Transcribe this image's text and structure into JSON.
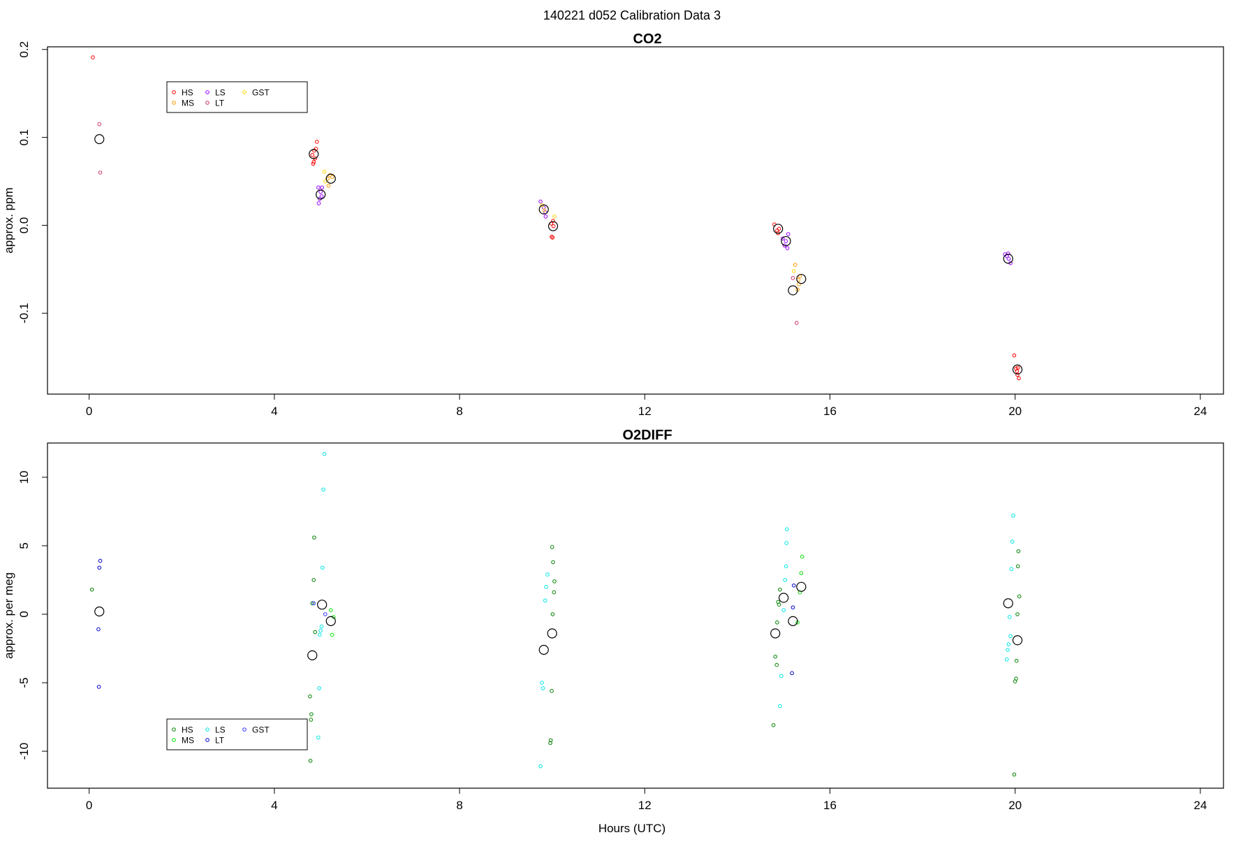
{
  "figure": {
    "title": "140221   d052   Calibration Data 3",
    "xlabel": "Hours (UTC)"
  },
  "chart_data": [
    {
      "type": "scatter",
      "title": "CO2",
      "xlabel": "",
      "ylabel": "approx. ppm",
      "xlim": [
        -0.9,
        24.5
      ],
      "ylim": [
        -0.192,
        0.203
      ],
      "x_ticks": [
        0,
        4,
        8,
        12,
        16,
        20,
        24
      ],
      "y_ticks": [
        -0.1,
        0.0,
        0.1,
        0.2
      ],
      "y_tick_labels": [
        "-0.1",
        "0.0",
        "0.1",
        "0.2"
      ],
      "grid": false,
      "legend_position": "top-left",
      "series": [
        {
          "name": "HS",
          "color": "#ff0000",
          "points": [
            [
              0.08,
              0.191
            ],
            [
              4.82,
              0.08
            ],
            [
              4.85,
              0.072
            ],
            [
              4.84,
              0.07
            ],
            [
              4.88,
              0.076
            ],
            [
              4.9,
              0.087
            ],
            [
              4.92,
              0.095
            ],
            [
              4.86,
              0.085
            ],
            [
              9.98,
              0.002
            ],
            [
              10.02,
              0.005
            ],
            [
              10.03,
              -0.001
            ],
            [
              9.99,
              -0.013
            ],
            [
              10.01,
              -0.014
            ],
            [
              14.8,
              0.001
            ],
            [
              14.86,
              -0.006
            ],
            [
              14.9,
              -0.004
            ],
            [
              14.88,
              -0.009
            ],
            [
              19.98,
              -0.148
            ],
            [
              20.02,
              -0.163
            ],
            [
              20.05,
              -0.17
            ],
            [
              20.08,
              -0.174
            ],
            [
              20.06,
              -0.162
            ],
            [
              20.04,
              -0.166
            ]
          ]
        },
        {
          "name": "MS",
          "color": "#ff9900",
          "points": [
            [
              5.15,
              0.053
            ],
            [
              5.2,
              0.057
            ],
            [
              5.17,
              0.045
            ],
            [
              5.25,
              0.055
            ],
            [
              15.25,
              -0.045
            ],
            [
              15.32,
              -0.062
            ],
            [
              15.3,
              -0.073
            ],
            [
              15.35,
              -0.058
            ],
            [
              15.33,
              -0.067
            ]
          ]
        },
        {
          "name": "LS",
          "color": "#9900ff",
          "points": [
            [
              4.95,
              0.043
            ],
            [
              5.0,
              0.038
            ],
            [
              5.02,
              0.033
            ],
            [
              4.98,
              0.03
            ],
            [
              4.96,
              0.025
            ],
            [
              5.03,
              0.043
            ],
            [
              9.75,
              0.027
            ],
            [
              9.82,
              0.02
            ],
            [
              9.85,
              0.015
            ],
            [
              9.86,
              0.01
            ],
            [
              14.98,
              -0.015
            ],
            [
              15.05,
              -0.018
            ],
            [
              15.02,
              -0.023
            ],
            [
              15.1,
              -0.01
            ],
            [
              15.08,
              -0.026
            ],
            [
              19.78,
              -0.033
            ],
            [
              19.82,
              -0.035
            ],
            [
              19.86,
              -0.038
            ],
            [
              19.9,
              -0.043
            ],
            [
              19.85,
              -0.032
            ]
          ]
        },
        {
          "name": "LT",
          "color": "#cc3366",
          "points": [
            [
              0.22,
              0.115
            ],
            [
              0.24,
              0.06
            ],
            [
              15.2,
              -0.06
            ],
            [
              15.28,
              -0.111
            ]
          ]
        },
        {
          "name": "GST",
          "color": "#ffd700",
          "points": [
            [
              5.08,
              0.061
            ],
            [
              5.1,
              0.05
            ],
            [
              9.78,
              0.023
            ],
            [
              9.83,
              0.017
            ],
            [
              10.05,
              0.01
            ],
            [
              15.22,
              -0.052
            ]
          ]
        }
      ],
      "means": [
        [
          0.22,
          0.098
        ],
        [
          4.85,
          0.081
        ],
        [
          5.0,
          0.035
        ],
        [
          5.22,
          0.053
        ],
        [
          9.82,
          0.018
        ],
        [
          10.02,
          -0.001
        ],
        [
          14.88,
          -0.004
        ],
        [
          15.05,
          -0.018
        ],
        [
          15.2,
          -0.074
        ],
        [
          15.38,
          -0.061
        ],
        [
          19.85,
          -0.038
        ],
        [
          20.05,
          -0.164
        ]
      ]
    },
    {
      "type": "scatter",
      "title": "O2DIFF",
      "xlabel": "Hours (UTC)",
      "ylabel": "approx. per meg",
      "xlim": [
        -0.9,
        24.5
      ],
      "ylim": [
        -12.7,
        12.5
      ],
      "x_ticks": [
        0,
        4,
        8,
        12,
        16,
        20,
        24
      ],
      "y_ticks": [
        -10,
        -5,
        0,
        5,
        10
      ],
      "y_tick_labels": [
        "-10",
        "-5",
        "0",
        "5",
        "10"
      ],
      "grid": false,
      "legend_position": "bottom-left",
      "series": [
        {
          "name": "HS",
          "color": "#008000",
          "points": [
            [
              0.06,
              1.8
            ],
            [
              4.78,
              -10.7
            ],
            [
              4.79,
              -7.7
            ],
            [
              4.8,
              -7.3
            ],
            [
              4.77,
              -6
            ],
            [
              4.82,
              0.8
            ],
            [
              4.85,
              2.5
            ],
            [
              4.86,
              5.6
            ],
            [
              4.88,
              -1.3
            ],
            [
              10.0,
              4.9
            ],
            [
              10.02,
              3.8
            ],
            [
              10.05,
              2.4
            ],
            [
              10.04,
              1.6
            ],
            [
              10.01,
              0.0
            ],
            [
              9.99,
              -5.6
            ],
            [
              9.97,
              -9.2
            ],
            [
              9.96,
              -9.4
            ],
            [
              14.78,
              -8.1
            ],
            [
              14.82,
              -3.1
            ],
            [
              14.85,
              -3.7
            ],
            [
              14.86,
              -0.6
            ],
            [
              14.88,
              0.9
            ],
            [
              14.9,
              0.7
            ],
            [
              14.92,
              1.8
            ],
            [
              19.98,
              -11.7
            ],
            [
              20.0,
              -4.9
            ],
            [
              20.02,
              -4.7
            ],
            [
              20.03,
              -3.4
            ],
            [
              20.05,
              0.0
            ],
            [
              20.06,
              3.5
            ],
            [
              20.07,
              4.6
            ],
            [
              20.09,
              1.3
            ]
          ]
        },
        {
          "name": "MS",
          "color": "#00dd00",
          "points": [
            [
              5.25,
              -1.5
            ],
            [
              5.22,
              0.3
            ],
            [
              5.28,
              -0.2
            ],
            [
              15.3,
              -0.6
            ],
            [
              15.35,
              1.6
            ],
            [
              15.38,
              3.0
            ],
            [
              15.4,
              4.2
            ]
          ]
        },
        {
          "name": "LS",
          "color": "#00e5e5",
          "points": [
            [
              4.98,
              -1.5
            ],
            [
              5.0,
              -1.2
            ],
            [
              5.02,
              -0.9
            ],
            [
              4.97,
              -5.4
            ],
            [
              4.95,
              -9
            ],
            [
              5.04,
              3.4
            ],
            [
              5.06,
              9.1
            ],
            [
              5.08,
              11.7
            ],
            [
              9.75,
              -11.1
            ],
            [
              9.78,
              -5
            ],
            [
              9.8,
              -5.4
            ],
            [
              9.85,
              1.0
            ],
            [
              9.87,
              2.0
            ],
            [
              9.9,
              2.9
            ],
            [
              14.95,
              -4.5
            ],
            [
              14.92,
              -6.7
            ],
            [
              15.0,
              0.3
            ],
            [
              15.03,
              2.5
            ],
            [
              15.05,
              3.5
            ],
            [
              15.06,
              5.2
            ],
            [
              15.07,
              6.2
            ],
            [
              19.82,
              -3.3
            ],
            [
              19.84,
              -2.6
            ],
            [
              19.86,
              -2.2
            ],
            [
              19.9,
              -1.6
            ],
            [
              19.88,
              -0.2
            ],
            [
              19.92,
              3.3
            ],
            [
              19.94,
              5.3
            ],
            [
              19.96,
              7.2
            ]
          ]
        },
        {
          "name": "LT",
          "color": "#0000cc",
          "points": [
            [
              0.2,
              -1.1
            ],
            [
              0.21,
              -5.3
            ],
            [
              0.22,
              3.4
            ],
            [
              0.24,
              3.9
            ],
            [
              15.18,
              -4.3
            ],
            [
              15.2,
              0.5
            ],
            [
              15.22,
              2.1
            ]
          ]
        },
        {
          "name": "GST",
          "color": "#3333ff",
          "points": [
            [
              4.85,
              0.8
            ],
            [
              5.1,
              0.0
            ]
          ]
        }
      ],
      "means": [
        [
          0.22,
          0.2
        ],
        [
          4.82,
          -3.0
        ],
        [
          5.03,
          0.7
        ],
        [
          5.22,
          -0.5
        ],
        [
          9.82,
          -2.6
        ],
        [
          10.0,
          -1.4
        ],
        [
          14.82,
          -1.4
        ],
        [
          15.0,
          1.2
        ],
        [
          15.2,
          -0.5
        ],
        [
          15.38,
          2.0
        ],
        [
          19.85,
          0.8
        ],
        [
          20.05,
          -1.9
        ]
      ]
    }
  ]
}
